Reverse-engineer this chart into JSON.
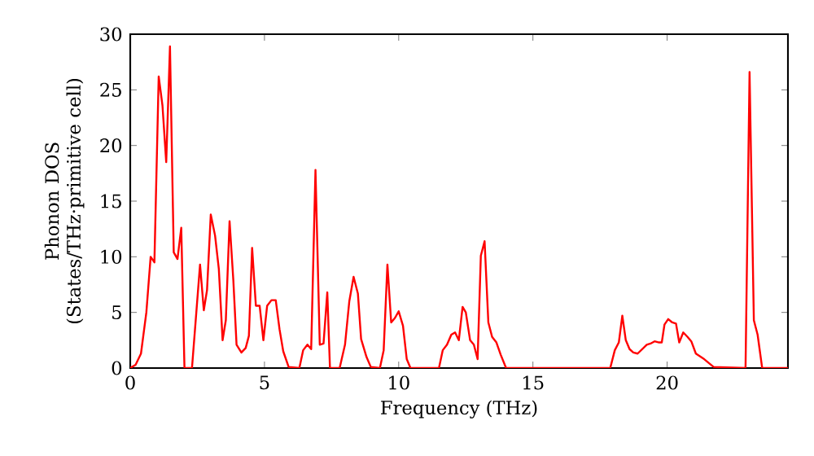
{
  "chart_data": {
    "type": "line",
    "xlabel": "Frequency (THz)",
    "ylabel": "Phonon DOS (States/THz·primitive cell)",
    "xlim": [
      0,
      24.5
    ],
    "ylim": [
      0,
      30
    ],
    "xticks": [
      0,
      5,
      10,
      15,
      20
    ],
    "yticks": [
      0,
      5,
      10,
      15,
      20,
      25,
      30
    ],
    "grid": false,
    "marker": "none",
    "line_style": "solid",
    "series": [
      {
        "color": "#ff0000",
        "x": [
          0,
          0.2,
          0.4,
          0.6,
          0.76,
          0.9,
          1.06,
          1.2,
          1.34,
          1.48,
          1.62,
          1.76,
          1.9,
          2.02,
          2.3,
          2.6,
          2.74,
          2.86,
          3.0,
          3.16,
          3.3,
          3.44,
          3.56,
          3.7,
          3.84,
          3.96,
          4.14,
          4.3,
          4.42,
          4.54,
          4.68,
          4.82,
          4.96,
          5.1,
          5.26,
          5.42,
          5.56,
          5.7,
          5.9,
          6.3,
          6.44,
          6.6,
          6.74,
          6.9,
          7.06,
          7.2,
          7.34,
          7.44,
          7.8,
          8.0,
          8.16,
          8.32,
          8.48,
          8.6,
          8.8,
          8.96,
          9.3,
          9.44,
          9.58,
          9.72,
          9.86,
          10.0,
          10.16,
          10.3,
          10.44,
          11.5,
          11.64,
          11.8,
          11.96,
          12.1,
          12.24,
          12.38,
          12.5,
          12.66,
          12.8,
          12.94,
          13.06,
          13.2,
          13.34,
          13.48,
          13.64,
          13.8,
          14.0,
          17.88,
          18.05,
          18.2,
          18.33,
          18.46,
          18.6,
          18.74,
          18.9,
          19.07,
          19.24,
          19.38,
          19.53,
          19.7,
          19.8,
          19.9,
          20.04,
          20.19,
          20.33,
          20.45,
          20.6,
          20.76,
          20.9,
          21.07,
          21.38,
          21.73,
          22.92,
          23.07,
          23.23,
          23.37,
          23.54,
          24.5
        ],
        "values": [
          0,
          0.3,
          1.3,
          5,
          10,
          9.5,
          26.2,
          23.6,
          18.5,
          28.9,
          10.4,
          9.8,
          12.6,
          0,
          0,
          9.3,
          5.2,
          7,
          13.8,
          11.9,
          8.9,
          2.5,
          4.3,
          13.2,
          7.9,
          2.1,
          1.4,
          1.8,
          2.9,
          10.8,
          5.6,
          5.6,
          2.5,
          5.6,
          6.1,
          6.1,
          3.5,
          1.5,
          0.1,
          0,
          1.6,
          2.1,
          1.7,
          17.8,
          2.1,
          2.2,
          6.8,
          0,
          0,
          2.1,
          6,
          8.2,
          6.7,
          2.6,
          1,
          0.1,
          0,
          1.6,
          9.3,
          4.1,
          4.5,
          5.1,
          3.8,
          0.8,
          0,
          0,
          1.6,
          2.1,
          3.0,
          3.2,
          2.5,
          5.5,
          5.0,
          2.5,
          2.1,
          0.8,
          10.1,
          11.4,
          4.1,
          2.8,
          2.3,
          1.2,
          0,
          0,
          1.6,
          2.3,
          4.7,
          2.5,
          1.7,
          1.4,
          1.3,
          1.7,
          2.1,
          2.2,
          2.4,
          2.3,
          2.3,
          3.9,
          4.4,
          4.1,
          4.0,
          2.3,
          3.2,
          2.8,
          2.4,
          1.3,
          0.8,
          0.1,
          0,
          26.6,
          4.3,
          3.0,
          0,
          0
        ]
      }
    ]
  }
}
